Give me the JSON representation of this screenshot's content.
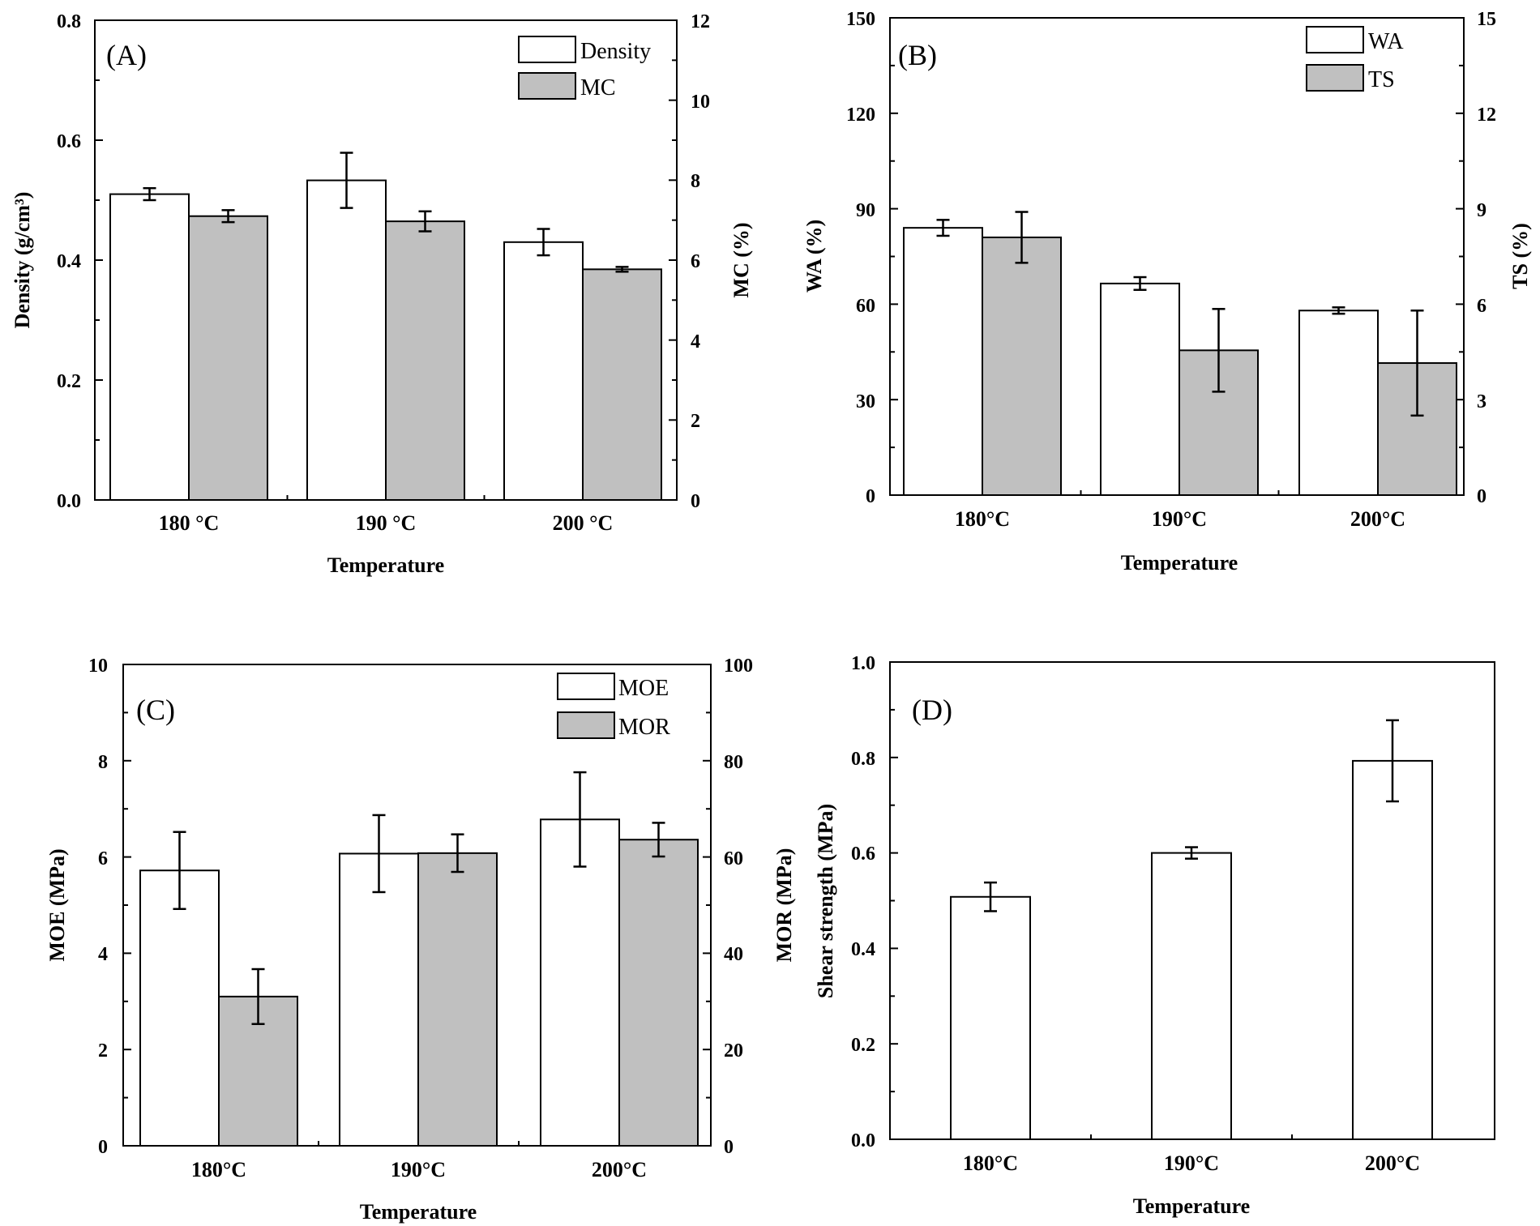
{
  "colors": {
    "bar_primary": "#ffffff",
    "bar_secondary": "#c0c0c0",
    "stroke": "#000000"
  },
  "chart_data": [
    {
      "panel_label": "(A)",
      "type": "bar",
      "categories": [
        "180 °C",
        "190 °C",
        "200 °C"
      ],
      "xlabel": "Temperature",
      "ylabel_left": "Density (g/cm³)",
      "ylabel_right": "MC (%)",
      "ylim_left": [
        0,
        0.8
      ],
      "yticks_left": [
        "0.0",
        "0.2",
        "0.4",
        "0.6",
        "0.8"
      ],
      "ylim_right": [
        0,
        12
      ],
      "yticks_right": [
        "0",
        "2",
        "4",
        "6",
        "8",
        "10",
        "12"
      ],
      "series": [
        {
          "name": "Density",
          "axis": "left",
          "values": [
            0.51,
            0.533,
            0.43
          ],
          "errors": [
            0.01,
            0.046,
            0.022
          ]
        },
        {
          "name": "MC",
          "axis": "right",
          "values": [
            7.1,
            6.97,
            5.77
          ],
          "errors": [
            0.15,
            0.25,
            0.06
          ]
        }
      ]
    },
    {
      "panel_label": "(B)",
      "type": "bar",
      "categories": [
        "180°C",
        "190°C",
        "200°C"
      ],
      "xlabel": "Temperature",
      "ylabel_left": "WA (%)",
      "ylabel_right": "TS (%)",
      "ylim_left": [
        0,
        150
      ],
      "yticks_left": [
        "0",
        "30",
        "60",
        "90",
        "120",
        "150"
      ],
      "ylim_right": [
        0,
        15
      ],
      "yticks_right": [
        "0",
        "3",
        "6",
        "9",
        "12",
        "15"
      ],
      "series": [
        {
          "name": "WA",
          "axis": "left",
          "values": [
            84,
            66.5,
            58
          ],
          "errors": [
            2.5,
            2,
            1
          ]
        },
        {
          "name": "TS",
          "axis": "right",
          "values": [
            8.1,
            4.55,
            4.15
          ],
          "errors": [
            0.8,
            1.3,
            1.65
          ]
        }
      ]
    },
    {
      "panel_label": "(C)",
      "type": "bar",
      "categories": [
        "180°C",
        "190°C",
        "200°C"
      ],
      "xlabel": "Temperature",
      "ylabel_left": "MOE (MPa)",
      "ylabel_right": "MOR (MPa)",
      "ylim_left": [
        0,
        10
      ],
      "yticks_left": [
        "0",
        "2",
        "4",
        "6",
        "8",
        "10"
      ],
      "ylim_right": [
        0,
        100
      ],
      "yticks_right": [
        "0",
        "20",
        "40",
        "60",
        "80",
        "100"
      ],
      "series": [
        {
          "name": "MOE",
          "axis": "left",
          "values": [
            5.72,
            6.07,
            6.78
          ],
          "errors": [
            0.8,
            0.8,
            0.98
          ]
        },
        {
          "name": "MOR",
          "axis": "right",
          "values": [
            31,
            60.8,
            63.6
          ],
          "errors": [
            5.7,
            3.9,
            3.5
          ]
        }
      ]
    },
    {
      "panel_label": "(D)",
      "type": "bar",
      "categories": [
        "180°C",
        "190°C",
        "200°C"
      ],
      "xlabel": "Temperature",
      "ylabel_left": "Shear strength (MPa)",
      "ylim_left": [
        0,
        1.0
      ],
      "yticks_left": [
        "0.0",
        "0.2",
        "0.4",
        "0.6",
        "0.8",
        "1.0"
      ],
      "series": [
        {
          "name": "Shear strength",
          "axis": "left",
          "values": [
            0.508,
            0.6,
            0.793
          ],
          "errors": [
            0.03,
            0.012,
            0.085
          ]
        }
      ]
    }
  ]
}
